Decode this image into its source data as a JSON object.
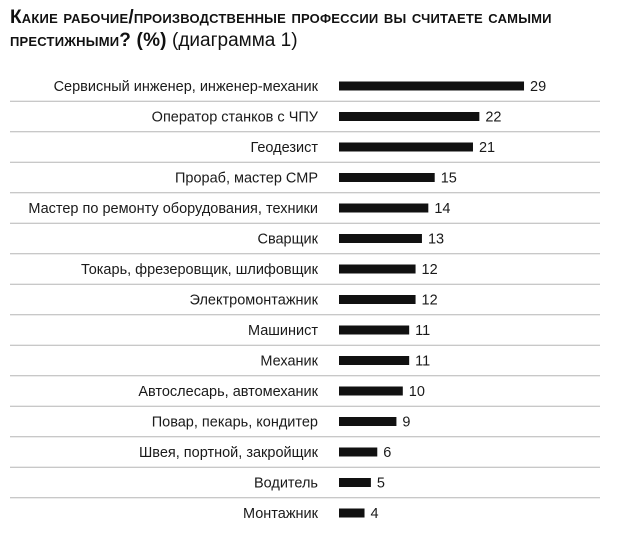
{
  "title_main": "Какие рабочие/производственные профессии вы считаете самыми престижными? (%)",
  "title_sub": "(диаграмма 1)",
  "colors": {
    "bar": "#111111",
    "grid": "#b5b5b5"
  },
  "chart_data": {
    "type": "bar",
    "orientation": "horizontal",
    "title": "Какие рабочие/производственные профессии вы считаете самыми престижными? (%) (диаграмма 1)",
    "categories": [
      "Сервисный инженер, инженер-механик",
      "Оператор станков с ЧПУ",
      "Геодезист",
      "Прораб, мастер СМР",
      "Мастер по ремонту оборудования, техники",
      "Сварщик",
      "Токарь, фрезеровщик, шлифовщик",
      "Электромонтажник",
      "Машинист",
      "Механик",
      "Автослесарь, автомеханик",
      "Повар, пекарь, кондитер",
      "Швея, портной, закройщик",
      "Водитель",
      "Монтажник"
    ],
    "values": [
      29,
      22,
      21,
      15,
      14,
      13,
      12,
      12,
      11,
      11,
      10,
      9,
      6,
      5,
      4
    ],
    "xlabel": "",
    "ylabel": "",
    "data_labels": true,
    "grid": "horizontal separators"
  }
}
